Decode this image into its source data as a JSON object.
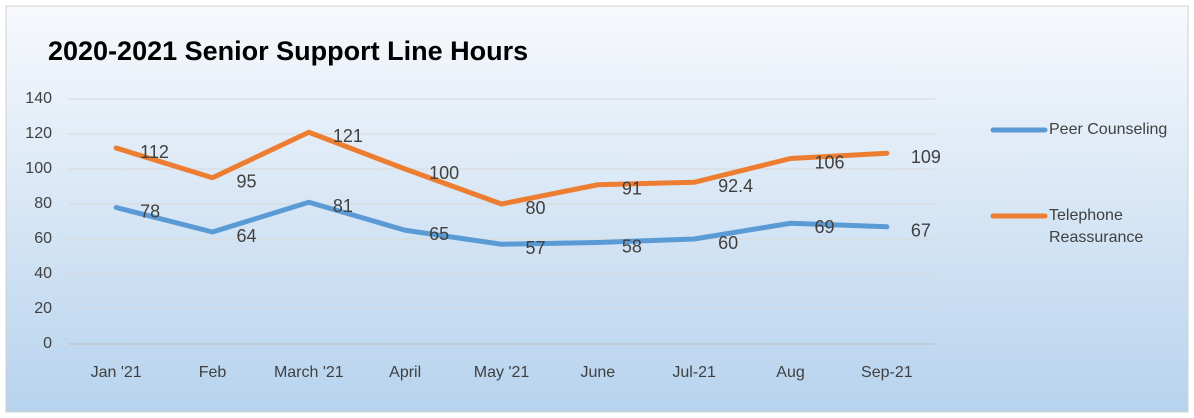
{
  "chart_data": {
    "type": "line",
    "title": "2020-2021 Senior Support Line Hours",
    "categories": [
      "Jan '21",
      "Feb",
      "March '21",
      "April",
      "May '21",
      "June",
      "Jul-21",
      "Aug",
      "Sep-21"
    ],
    "series": [
      {
        "name": "Peer Counseling",
        "color": "#5b9bd5",
        "values": [
          78,
          64,
          81,
          65,
          57,
          58,
          60,
          69,
          67
        ]
      },
      {
        "name": "Telephone Reassurance",
        "color": "#ed7d31",
        "values": [
          112,
          95,
          121,
          100,
          80,
          91,
          92.4,
          106,
          109
        ]
      }
    ],
    "ylim": [
      0,
      140
    ],
    "yticks": [
      0,
      20,
      40,
      60,
      80,
      100,
      120,
      140
    ],
    "grid": true,
    "legend": "right"
  }
}
